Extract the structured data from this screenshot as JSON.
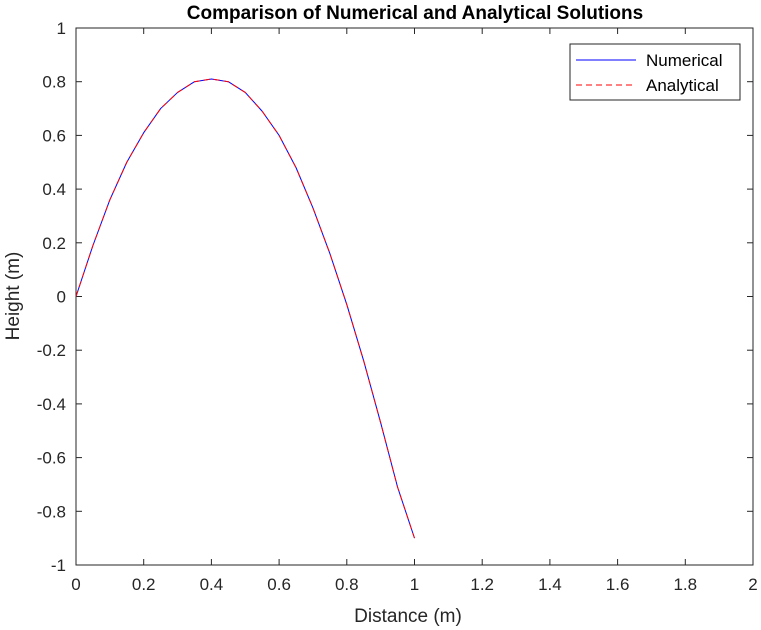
{
  "chart_data": {
    "type": "line",
    "title": "Comparison of Numerical and Analytical Solutions",
    "xlabel": "Distance (m)",
    "ylabel": "Height (m)",
    "xlim": [
      0,
      2
    ],
    "ylim": [
      -1,
      1
    ],
    "xticks": [
      0,
      0.2,
      0.4,
      0.6,
      0.8,
      1,
      1.2,
      1.4,
      1.6,
      1.8,
      2
    ],
    "xtick_labels": [
      "0",
      "0.2",
      "0.4",
      "0.6",
      "0.8",
      "1",
      "1.2",
      "1.4",
      "1.6",
      "1.8",
      "2"
    ],
    "yticks": [
      -1,
      -0.8,
      -0.6,
      -0.4,
      -0.2,
      0,
      0.2,
      0.4,
      0.6,
      0.8,
      1
    ],
    "ytick_labels": [
      "-1",
      "-0.8",
      "-0.6",
      "-0.4",
      "-0.2",
      "0",
      "0.2",
      "0.4",
      "0.6",
      "0.8",
      "1"
    ],
    "grid": false,
    "legend_position": "top-right",
    "x": [
      0,
      0.05,
      0.1,
      0.15,
      0.2,
      0.25,
      0.3,
      0.35,
      0.4,
      0.45,
      0.5,
      0.55,
      0.6,
      0.65,
      0.7,
      0.75,
      0.8,
      0.85,
      0.9,
      0.95,
      1.0
    ],
    "series": [
      {
        "name": "Numerical",
        "color": "#0000ff",
        "line_style": "solid",
        "values": [
          0,
          0.19,
          0.36,
          0.5,
          0.61,
          0.7,
          0.76,
          0.8,
          0.81,
          0.8,
          0.76,
          0.69,
          0.6,
          0.48,
          0.33,
          0.16,
          -0.03,
          -0.24,
          -0.47,
          -0.71,
          -0.9
        ]
      },
      {
        "name": "Analytical",
        "color": "#ff0000",
        "line_style": "dashed",
        "values": [
          0,
          0.19,
          0.36,
          0.5,
          0.61,
          0.7,
          0.76,
          0.8,
          0.81,
          0.8,
          0.76,
          0.69,
          0.6,
          0.48,
          0.33,
          0.16,
          -0.03,
          -0.24,
          -0.47,
          -0.71,
          -0.9
        ]
      }
    ]
  }
}
